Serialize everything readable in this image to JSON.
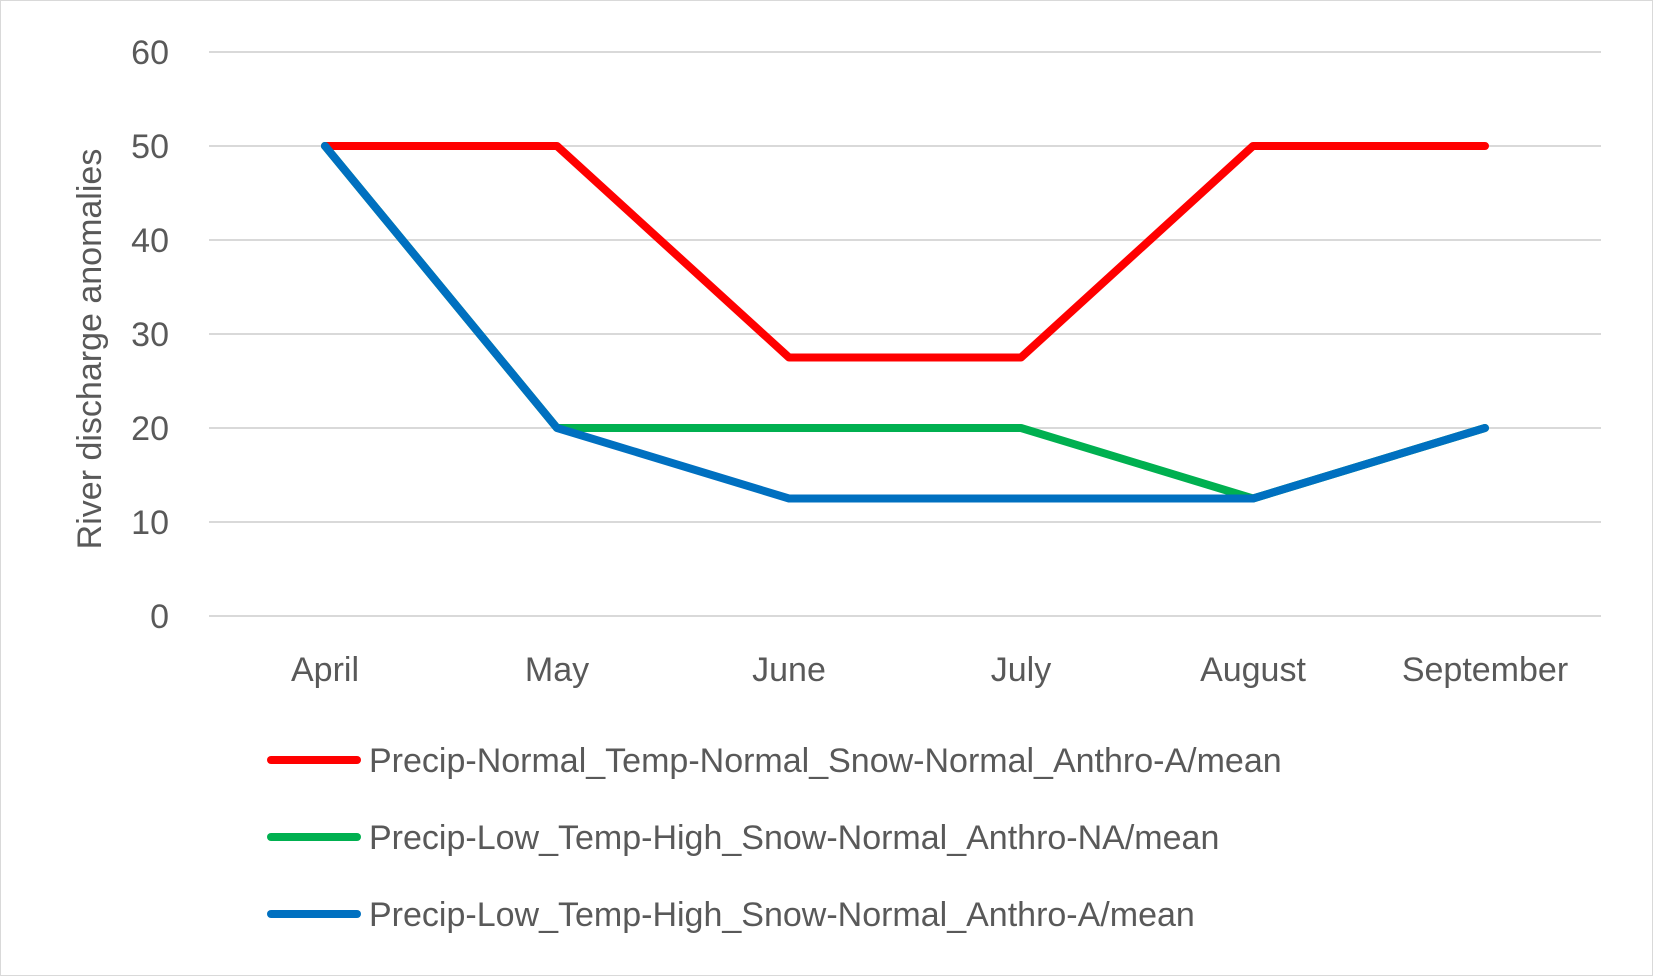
{
  "chart_data": {
    "type": "line",
    "title": "",
    "xlabel": "",
    "ylabel": "River discharge anomalies",
    "categories": [
      "April",
      "May",
      "June",
      "July",
      "August",
      "September"
    ],
    "ylim": [
      0,
      60
    ],
    "yticks": [
      0,
      10,
      20,
      30,
      40,
      50,
      60
    ],
    "grid": true,
    "legend_position": "bottom",
    "series": [
      {
        "name": "Precip-Normal_Temp-Normal_Snow-Normal_Anthro-A/mean",
        "color": "#ff0000",
        "values": [
          50,
          50,
          27.5,
          27.5,
          50,
          50
        ]
      },
      {
        "name": "Precip-Low_Temp-High_Snow-Normal_Anthro-NA/mean",
        "color": "#00b050",
        "values": [
          50,
          20,
          20,
          20,
          12.5,
          20
        ]
      },
      {
        "name": "Precip-Low_Temp-High_Snow-Normal_Anthro-A/mean",
        "color": "#0070c0",
        "values": [
          50,
          20,
          12.5,
          12.5,
          12.5,
          20
        ]
      }
    ]
  }
}
